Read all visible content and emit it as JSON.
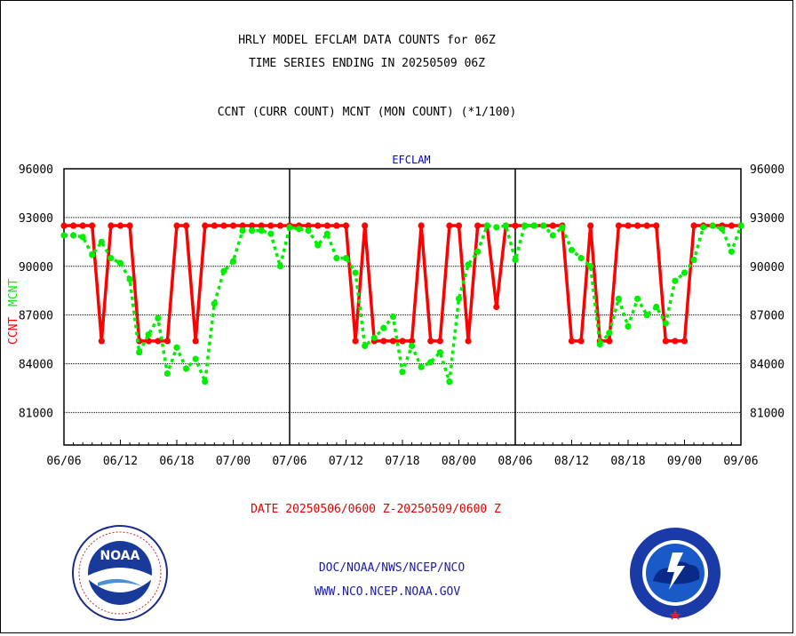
{
  "title_line1": "HRLY MODEL EFCLAM DATA COUNTS for 06Z",
  "title_line2": "TIME SERIES ENDING IN 20250509 06Z",
  "subtitle": "CCNT (CURR COUNT) MCNT (MON COUNT) (*1/100)",
  "date_range": "DATE 20250506/0600 Z-20250509/0600 Z",
  "credit_line1": "DOC/NOAA/NWS/NCEP/NCO",
  "credit_line2": "WWW.NCO.NCEP.NOAA.GOV",
  "logos": {
    "left": "NOAA",
    "right": "NATIONAL WEATHER SERVICE"
  },
  "colors": {
    "ccnt": "#ff0000",
    "mcnt": "#00ee00",
    "panel_label": "#0000cc",
    "date_range": "#e00000",
    "credit": "#1a1aa0"
  },
  "chart_data": {
    "type": "line",
    "panel_label": "EFCLAM",
    "ylabel_ccnt": "CCNT",
    "ylabel_mcnt": "MCNT",
    "ylim": [
      79000,
      96000
    ],
    "y_ticks": [
      "96000",
      "93000",
      "90000",
      "87000",
      "84000",
      "81000"
    ],
    "y_tick_values": [
      96000,
      93000,
      90000,
      87000,
      84000,
      81000
    ],
    "x_tick_labels": [
      "06/06",
      "06/12",
      "06/18",
      "07/00",
      "07/06",
      "07/12",
      "07/18",
      "08/00",
      "08/06",
      "08/12",
      "08/18",
      "09/00",
      "09/06"
    ],
    "grid": true,
    "x_hours": [
      0,
      1,
      2,
      3,
      4,
      5,
      6,
      7,
      8,
      9,
      10,
      11,
      12,
      13,
      14,
      15,
      16,
      17,
      18,
      19,
      20,
      21,
      22,
      23,
      24,
      25,
      26,
      27,
      28,
      29,
      30,
      31,
      32,
      33,
      34,
      35,
      36,
      37,
      38,
      39,
      40,
      41,
      42,
      43,
      44,
      45,
      46,
      47,
      48,
      49,
      50,
      51,
      52,
      53,
      54,
      55,
      56,
      57,
      58,
      59,
      60,
      61,
      62,
      63,
      64,
      65,
      66,
      67,
      68,
      69,
      70,
      71,
      72
    ],
    "series": [
      {
        "name": "CCNT",
        "values": [
          92500,
          92500,
          92500,
          92500,
          85400,
          92500,
          92500,
          92500,
          85400,
          85400,
          85400,
          85400,
          92500,
          92500,
          85400,
          92500,
          92500,
          92500,
          92500,
          92500,
          92500,
          92500,
          92500,
          92500,
          92500,
          92500,
          92500,
          92500,
          92500,
          92500,
          92500,
          85400,
          92500,
          85400,
          85400,
          85400,
          85400,
          85400,
          92500,
          85400,
          85400,
          92500,
          92500,
          85400,
          92500,
          92500,
          87500,
          92500,
          92500,
          92500,
          92500,
          92500,
          92500,
          92500,
          85400,
          85400,
          92500,
          85400,
          85400,
          92500,
          92500,
          92500,
          92500,
          92500,
          85400,
          85400,
          85400,
          92500,
          92500,
          92500,
          92500,
          92500,
          92500
        ]
      },
      {
        "name": "MCNT",
        "values": [
          91900,
          91900,
          91800,
          90700,
          91500,
          90500,
          90200,
          89200,
          84700,
          85800,
          86800,
          83400,
          85000,
          83700,
          84300,
          82900,
          87700,
          89700,
          90300,
          92200,
          92200,
          92200,
          92000,
          90000,
          92400,
          92300,
          92200,
          91300,
          92000,
          90500,
          90500,
          89600,
          85100,
          85600,
          86200,
          86900,
          83500,
          85100,
          83800,
          84100,
          84700,
          82900,
          88000,
          90100,
          90900,
          92500,
          92400,
          92500,
          90400,
          92500,
          92500,
          92500,
          91900,
          92400,
          91000,
          90500,
          90000,
          85200,
          85900,
          88000,
          86300,
          88000,
          87000,
          87500,
          86500,
          89100,
          89600,
          90400,
          92400,
          92500,
          92300,
          90900,
          92500
        ]
      }
    ]
  }
}
